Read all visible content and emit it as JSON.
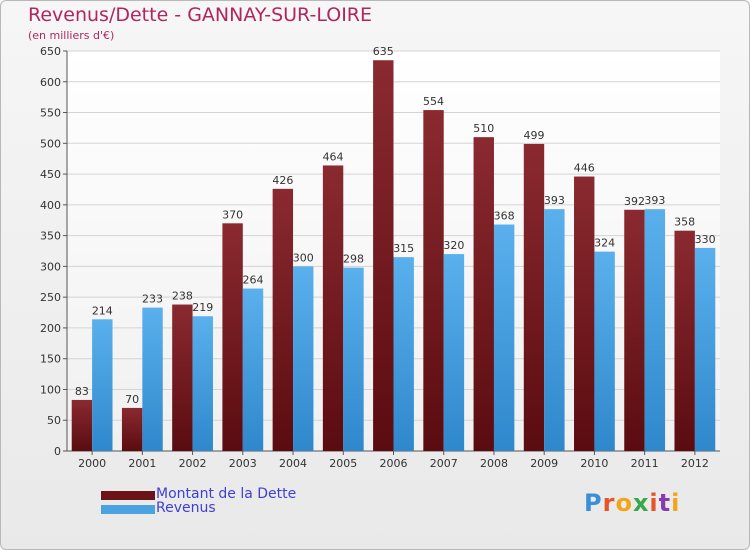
{
  "header": {
    "title": "Revenus/Dette - GANNAY-SUR-LOIRE",
    "subtitle": "(en milliers d'€)"
  },
  "colors": {
    "dette": "#7a1c22",
    "revenus": "#4aa3e0",
    "title": "#b02660",
    "legend_text": "#3f3fd8"
  },
  "legend": {
    "items": [
      {
        "label": "Montant de la Dette",
        "color": "#6b1418"
      },
      {
        "label": "Revenus",
        "color": "#4aa3e0"
      }
    ]
  },
  "logo": {
    "text": "Proxiti"
  },
  "chart_data": {
    "type": "bar",
    "title": "Revenus/Dette - GANNAY-SUR-LOIRE",
    "ylabel": "(en milliers d'€)",
    "xlabel": "",
    "ylim": [
      0,
      650
    ],
    "yticks": [
      0,
      50,
      100,
      150,
      200,
      250,
      300,
      350,
      400,
      450,
      500,
      550,
      600,
      650
    ],
    "grid": true,
    "legend_position": "bottom-left",
    "categories": [
      "2000",
      "2001",
      "2002",
      "2003",
      "2004",
      "2005",
      "2006",
      "2007",
      "2008",
      "2009",
      "2010",
      "2011",
      "2012"
    ],
    "series": [
      {
        "name": "Montant de la Dette",
        "values": [
          83,
          70,
          238,
          370,
          426,
          464,
          635,
          554,
          510,
          499,
          446,
          392,
          358
        ]
      },
      {
        "name": "Revenus",
        "values": [
          214,
          233,
          219,
          264,
          300,
          298,
          315,
          320,
          368,
          393,
          324,
          393,
          330
        ]
      }
    ]
  }
}
